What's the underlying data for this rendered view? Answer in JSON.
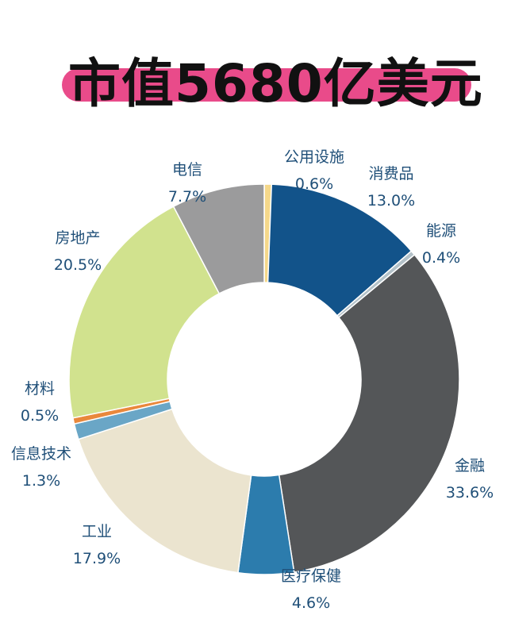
{
  "title": "市值5680亿美元",
  "colors": {
    "title_bar": "#e94b8a"
  },
  "chart_data": {
    "type": "pie",
    "donut": true,
    "categories": [
      "公用设施",
      "消费品",
      "能源",
      "金融",
      "医疗保健",
      "工业",
      "信息技术",
      "材料",
      "房地产",
      "电信"
    ],
    "values": [
      0.6,
      13.0,
      0.4,
      33.6,
      4.6,
      17.9,
      1.3,
      0.5,
      20.5,
      7.7
    ],
    "labels": [
      "0.6%",
      "13.0%",
      "0.4%",
      "33.6%",
      "4.6%",
      "17.9%",
      "1.3%",
      "0.5%",
      "20.5%",
      "7.7%"
    ],
    "colors": [
      "#f5d88a",
      "#12538a",
      "#b4c2c9",
      "#545658",
      "#2c7cad",
      "#ebe4cf",
      "#6aa6c6",
      "#e9883c",
      "#d1e28e",
      "#9b9b9c"
    ]
  }
}
